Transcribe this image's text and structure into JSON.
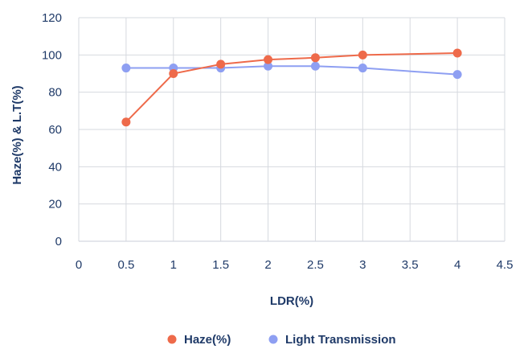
{
  "chart_data": {
    "type": "line",
    "xlabel": "LDR(%)",
    "ylabel": "Haze(%) & L.T(%)",
    "xlim": [
      0,
      4.5
    ],
    "ylim": [
      0,
      120
    ],
    "x_ticks": [
      "0",
      "0.5",
      "1",
      "1.5",
      "2",
      "2.5",
      "3",
      "3.5",
      "4",
      "4.5"
    ],
    "y_ticks": [
      "0",
      "20",
      "40",
      "60",
      "80",
      "100",
      "120"
    ],
    "grid": true,
    "legend_position": "bottom",
    "series": [
      {
        "name": "Haze(%)",
        "color": "#ee6a4a",
        "x": [
          0.5,
          1,
          1.5,
          2,
          2.5,
          3,
          4
        ],
        "y": [
          64,
          90,
          95,
          97.5,
          98.5,
          100,
          101
        ]
      },
      {
        "name": "Light Transmission",
        "color": "#8e9ff2",
        "x": [
          0.5,
          1,
          1.5,
          2,
          2.5,
          3,
          4
        ],
        "y": [
          93,
          93,
          93,
          94,
          94,
          93,
          89.5
        ]
      }
    ]
  }
}
